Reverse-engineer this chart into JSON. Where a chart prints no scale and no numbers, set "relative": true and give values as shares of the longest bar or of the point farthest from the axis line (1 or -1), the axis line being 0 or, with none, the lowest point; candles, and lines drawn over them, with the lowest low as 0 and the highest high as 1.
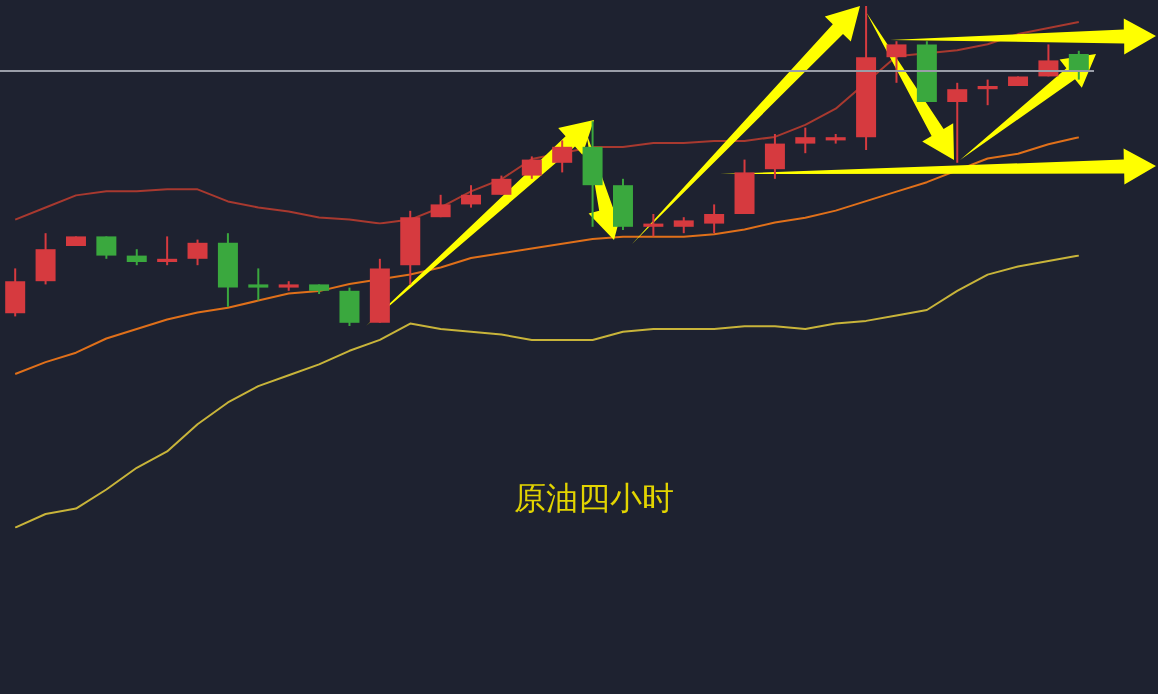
{
  "chart_data": [
    {
      "type": "candlestick",
      "title": "原油四小时",
      "relative": true,
      "categories": [
        null,
        null,
        null,
        null,
        null,
        null,
        null,
        null,
        null,
        null,
        null,
        null,
        null,
        null,
        null,
        null,
        null,
        null,
        null,
        null,
        null,
        null,
        null,
        null,
        null,
        null,
        null,
        null,
        null,
        null,
        null,
        null,
        null,
        null,
        null,
        null
      ],
      "colors": [
        "#d63a3f",
        "#d63a3f",
        "#d63a3f",
        "#3aa83e",
        "#3aa83e",
        "#d63a3f",
        "#d63a3f",
        "#3aa83e",
        "#3aa83e",
        "#d63a3f",
        "#3aa83e",
        "#3aa83e",
        "#d63a3f",
        "#d63a3f",
        "#d63a3f",
        "#d63a3f",
        "#d63a3f",
        "#d63a3f",
        "#d63a3f",
        "#3aa83e",
        "#3aa83e",
        "#d63a3f",
        "#d63a3f",
        "#d63a3f",
        "#d63a3f",
        "#d63a3f",
        "#d63a3f",
        "#d63a3f",
        "#d63a3f",
        "#d63a3f",
        "#3aa83e",
        "#d63a3f",
        "#d63a3f",
        "#d63a3f",
        "#d63a3f",
        "#3aa83e"
      ],
      "ohlc": [
        [
          0.04,
          0.18,
          0.03,
          0.14
        ],
        [
          0.14,
          0.29,
          0.13,
          0.24
        ],
        [
          0.25,
          0.28,
          0.25,
          0.28
        ],
        [
          0.28,
          0.28,
          0.21,
          0.22
        ],
        [
          0.22,
          0.24,
          0.19,
          0.2
        ],
        [
          0.2,
          0.28,
          0.19,
          0.21
        ],
        [
          0.21,
          0.27,
          0.19,
          0.26
        ],
        [
          0.26,
          0.29,
          0.06,
          0.12
        ],
        [
          0.13,
          0.18,
          0.08,
          0.12
        ],
        [
          0.12,
          0.14,
          0.11,
          0.13
        ],
        [
          0.13,
          0.13,
          0.1,
          0.11
        ],
        [
          0.11,
          0.12,
          0,
          0.01
        ],
        [
          0.01,
          0.21,
          0.01,
          0.18
        ],
        [
          0.19,
          0.36,
          0.13,
          0.34
        ],
        [
          0.34,
          0.41,
          0.34,
          0.38
        ],
        [
          0.38,
          0.44,
          0.37,
          0.41
        ],
        [
          0.41,
          0.47,
          0.41,
          0.46
        ],
        [
          0.47,
          0.53,
          0.46,
          0.52
        ],
        [
          0.51,
          0.58,
          0.48,
          0.56
        ],
        [
          0.56,
          0.64,
          0.31,
          0.44
        ],
        [
          0.44,
          0.46,
          0.3,
          0.31
        ],
        [
          0.31,
          0.35,
          0.28,
          0.32
        ],
        [
          0.31,
          0.34,
          0.29,
          0.33
        ],
        [
          0.32,
          0.38,
          0.29,
          0.35
        ],
        [
          0.35,
          0.52,
          0.35,
          0.48
        ],
        [
          0.49,
          0.6,
          0.46,
          0.57
        ],
        [
          0.57,
          0.62,
          0.54,
          0.59
        ],
        [
          0.58,
          0.6,
          0.57,
          0.59
        ],
        [
          0.59,
          1,
          0.55,
          0.84
        ],
        [
          0.84,
          0.89,
          0.76,
          0.88
        ],
        [
          0.88,
          0.89,
          0.7,
          0.7
        ],
        [
          0.7,
          0.76,
          0.51,
          0.74
        ],
        [
          0.74,
          0.77,
          0.69,
          0.75
        ],
        [
          0.75,
          0.78,
          0.75,
          0.78
        ],
        [
          0.78,
          0.88,
          0.78,
          0.83
        ],
        [
          0.85,
          0.86,
          0.77,
          0.8
        ]
      ],
      "ref_lines": [
        {
          "axis": "y",
          "value": 0.8,
          "color": "#9a9ea8"
        }
      ]
    },
    {
      "type": "line",
      "relative": true,
      "categories": [
        null,
        null,
        null,
        null,
        null,
        null,
        null,
        null,
        null,
        null,
        null,
        null,
        null,
        null,
        null,
        null,
        null,
        null,
        null,
        null,
        null,
        null,
        null,
        null,
        null,
        null,
        null,
        null,
        null,
        null,
        null,
        null,
        null,
        null,
        null,
        null
      ],
      "series": [
        {
          "color": "#a8392f",
          "values": [
            0.02,
            0.08,
            0.14,
            0.16,
            0.16,
            0.17,
            0.17,
            0.11,
            0.08,
            0.06,
            0.03,
            0.02,
            0,
            0.02,
            0.08,
            0.16,
            0.22,
            0.32,
            null,
            0.38,
            0.38,
            0.4,
            0.4,
            0.41,
            0.41,
            0.43,
            0.49,
            0.57,
            null,
            0.83,
            null,
            0.86,
            0.89,
            0.94,
            0.97,
            1
          ]
        }
      ]
    },
    {
      "type": "line",
      "relative": true,
      "categories": [
        null,
        null,
        null,
        null,
        null,
        null,
        null,
        null,
        null,
        null,
        null,
        null,
        null,
        null,
        null,
        null,
        null,
        null,
        null,
        null,
        null,
        null,
        null,
        null,
        null,
        null,
        null,
        null,
        null,
        null,
        null,
        null,
        null,
        null,
        null,
        null
      ],
      "series": [
        {
          "color": "#e0701a",
          "values": [
            0,
            0.05,
            0.09,
            0.15,
            0.19,
            0.23,
            0.26,
            0.28,
            0.31,
            0.34,
            0.35,
            0.38,
            null,
            0.42,
            0.45,
            0.49,
            0.51,
            0.53,
            0.55,
            0.57,
            0.58,
            0.58,
            0.58,
            0.59,
            0.61,
            0.64,
            0.66,
            0.69,
            0.73,
            0.77,
            0.81,
            null,
            0.91,
            0.93,
            0.97,
            1
          ]
        }
      ]
    },
    {
      "type": "line",
      "relative": true,
      "categories": [
        null,
        null,
        null,
        null,
        null,
        null,
        null,
        null,
        null,
        null,
        null,
        null,
        null,
        null,
        null,
        null,
        null,
        null,
        null,
        null,
        null,
        null,
        null,
        null,
        null,
        null,
        null,
        null,
        null,
        null,
        null,
        null,
        null,
        null,
        null,
        null
      ],
      "series": [
        {
          "color": "#c8b43a",
          "values": [
            0,
            0.05,
            0.07,
            0.14,
            0.22,
            0.28,
            0.38,
            0.46,
            0.52,
            0.56,
            0.6,
            0.65,
            0.69,
            0.75,
            0.73,
            0.72,
            0.71,
            0.69,
            0.69,
            0.69,
            0.72,
            0.73,
            0.73,
            0.73,
            0.74,
            0.74,
            0.73,
            0.75,
            0.76,
            0.78,
            0.8,
            0.87,
            0.93,
            0.96,
            0.98,
            1
          ]
        }
      ]
    }
  ]
}
